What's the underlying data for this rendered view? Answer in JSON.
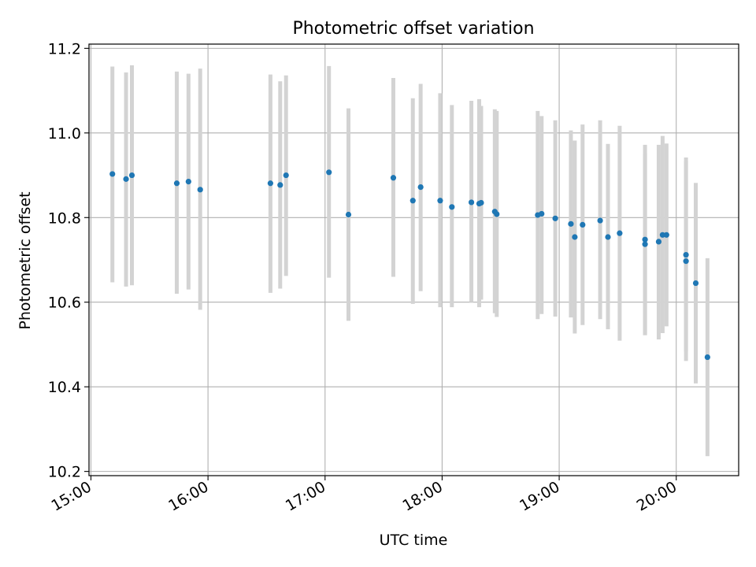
{
  "colors": {
    "point": "#1f77b4",
    "errorbar": "#d3d3d3",
    "grid": "#b0b0b0",
    "axis": "#000000"
  },
  "chart_data": {
    "type": "scatter",
    "title": "Photometric offset variation",
    "xlabel": "UTC time",
    "ylabel": "Photometric offset",
    "grid": true,
    "x_axis_type": "time",
    "xlim": [
      "14:59",
      "20:32"
    ],
    "ylim": [
      10.19,
      11.21
    ],
    "x_ticks": [
      "15:00",
      "16:00",
      "17:00",
      "18:00",
      "19:00",
      "20:00"
    ],
    "y_ticks": [
      10.2,
      10.4,
      10.6,
      10.8,
      11.0,
      11.2
    ],
    "y_tick_labels": [
      "10.2",
      "10.4",
      "10.6",
      "10.8",
      "11.0",
      "11.2"
    ],
    "series": [
      {
        "points": [
          {
            "time": "15:11",
            "y": 10.903,
            "lo": 10.647,
            "hi": 11.157
          },
          {
            "time": "15:18",
            "y": 10.891,
            "lo": 10.637,
            "hi": 11.143
          },
          {
            "time": "15:21",
            "y": 10.9,
            "lo": 10.64,
            "hi": 11.16
          },
          {
            "time": "15:44",
            "y": 10.881,
            "lo": 10.62,
            "hi": 11.145
          },
          {
            "time": "15:50",
            "y": 10.885,
            "lo": 10.63,
            "hi": 11.14
          },
          {
            "time": "15:56",
            "y": 10.866,
            "lo": 10.582,
            "hi": 11.152
          },
          {
            "time": "16:32",
            "y": 10.881,
            "lo": 10.622,
            "hi": 11.138
          },
          {
            "time": "16:37",
            "y": 10.877,
            "lo": 10.632,
            "hi": 11.122
          },
          {
            "time": "16:40",
            "y": 10.9,
            "lo": 10.662,
            "hi": 11.136
          },
          {
            "time": "17:02",
            "y": 10.907,
            "lo": 10.658,
            "hi": 11.158
          },
          {
            "time": "17:12",
            "y": 10.807,
            "lo": 10.556,
            "hi": 11.058
          },
          {
            "time": "17:35",
            "y": 10.894,
            "lo": 10.66,
            "hi": 11.13
          },
          {
            "time": "17:45",
            "y": 10.84,
            "lo": 10.596,
            "hi": 11.082
          },
          {
            "time": "17:49",
            "y": 10.872,
            "lo": 10.626,
            "hi": 11.116
          },
          {
            "time": "17:59",
            "y": 10.84,
            "lo": 10.588,
            "hi": 11.094
          },
          {
            "time": "18:05",
            "y": 10.825,
            "lo": 10.588,
            "hi": 11.066
          },
          {
            "time": "18:15",
            "y": 10.836,
            "lo": 10.6,
            "hi": 11.076
          },
          {
            "time": "18:19",
            "y": 10.833,
            "lo": 10.588,
            "hi": 11.08
          },
          {
            "time": "18:20",
            "y": 10.835,
            "lo": 10.606,
            "hi": 11.064
          },
          {
            "time": "18:27",
            "y": 10.814,
            "lo": 10.574,
            "hi": 11.056
          },
          {
            "time": "18:28",
            "y": 10.808,
            "lo": 10.565,
            "hi": 11.052
          },
          {
            "time": "18:49",
            "y": 10.806,
            "lo": 10.56,
            "hi": 11.052
          },
          {
            "time": "18:51",
            "y": 10.809,
            "lo": 10.572,
            "hi": 11.04
          },
          {
            "time": "18:58",
            "y": 10.798,
            "lo": 10.566,
            "hi": 11.03
          },
          {
            "time": "19:06",
            "y": 10.785,
            "lo": 10.564,
            "hi": 11.006
          },
          {
            "time": "19:08",
            "y": 10.754,
            "lo": 10.526,
            "hi": 10.982
          },
          {
            "time": "19:12",
            "y": 10.783,
            "lo": 10.546,
            "hi": 11.02
          },
          {
            "time": "19:21",
            "y": 10.793,
            "lo": 10.56,
            "hi": 11.03
          },
          {
            "time": "19:25",
            "y": 10.754,
            "lo": 10.536,
            "hi": 10.974
          },
          {
            "time": "19:31",
            "y": 10.763,
            "lo": 10.509,
            "hi": 11.017
          },
          {
            "time": "19:44",
            "y": 10.737,
            "lo": 10.522,
            "hi": 10.952
          },
          {
            "time": "19:44",
            "y": 10.748,
            "lo": 10.522,
            "hi": 10.972
          },
          {
            "time": "19:51",
            "y": 10.743,
            "lo": 10.512,
            "hi": 10.972
          },
          {
            "time": "19:53",
            "y": 10.759,
            "lo": 10.527,
            "hi": 10.993
          },
          {
            "time": "19:55",
            "y": 10.759,
            "lo": 10.543,
            "hi": 10.975
          },
          {
            "time": "20:05",
            "y": 10.697,
            "lo": 10.461,
            "hi": 10.933
          },
          {
            "time": "20:05",
            "y": 10.712,
            "lo": 10.484,
            "hi": 10.942
          },
          {
            "time": "20:10",
            "y": 10.645,
            "lo": 10.408,
            "hi": 10.882
          },
          {
            "time": "20:16",
            "y": 10.47,
            "lo": 10.236,
            "hi": 10.704
          }
        ]
      }
    ]
  }
}
